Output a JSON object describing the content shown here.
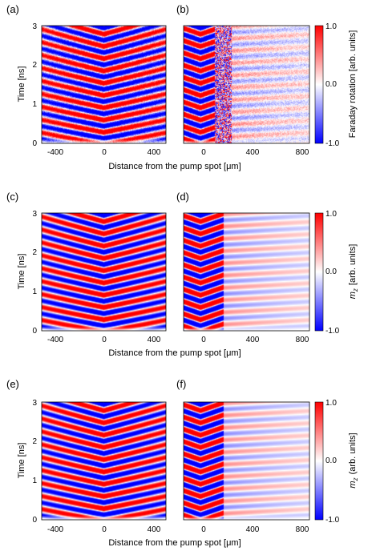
{
  "figure": {
    "panels": [
      {
        "id": "a",
        "label": "(a)",
        "type": "line_profile_heatmap",
        "kind": "sym",
        "noisy": true
      },
      {
        "id": "b",
        "label": "(b)",
        "type": "line_profile_heatmap",
        "kind": "asym",
        "noisy": true
      },
      {
        "id": "c",
        "label": "(c)",
        "type": "line_profile_heatmap",
        "kind": "sym",
        "noisy": false
      },
      {
        "id": "d",
        "label": "(d)",
        "type": "line_profile_heatmap",
        "kind": "asym",
        "noisy": false
      },
      {
        "id": "e",
        "label": "(e)",
        "type": "line_profile_heatmap",
        "kind": "sym",
        "noisy": false
      },
      {
        "id": "f",
        "label": "(f)",
        "type": "line_profile_heatmap",
        "kind": "asym",
        "noisy": false
      }
    ],
    "rows": [
      {
        "ylabel": "Time [ns]",
        "xlabel_main": "Distance from the pump spot [",
        "xlabel_unit": "m]",
        "colorbar_label": "Faraday rotation  [arb. units]",
        "colorbar_ticks": [
          "1.0",
          "0.0",
          "-1.0"
        ]
      },
      {
        "ylabel": "Time [ns]",
        "xlabel_main": "Distance from the pump spot [",
        "xlabel_unit": "m]",
        "colorbar_label": "[arb. units]",
        "colorbar_symbol": "m",
        "colorbar_subscript": "z",
        "colorbar_ticks": [
          "1.0",
          "0.0",
          "-1.0"
        ]
      },
      {
        "ylabel": "Time [ns]",
        "xlabel_main": "Distance from the pump spot [",
        "xlabel_unit": "m]",
        "colorbar_label": "(arb. units]",
        "colorbar_symbol": "m",
        "colorbar_subscript": "z",
        "colorbar_ticks": [
          "1.0",
          "0.0",
          "-1.0"
        ]
      }
    ],
    "mu_symbol": "μ",
    "left_xticks": [
      "-400",
      "0",
      "400"
    ],
    "right_xticks": [
      "0",
      "400",
      "800"
    ],
    "yticks": [
      "0",
      "1",
      "2",
      "3"
    ],
    "colormap": {
      "negative": "#0000ff",
      "zero": "#ffffff",
      "positive": "#ff0000"
    }
  },
  "chart_data": [
    {
      "type": "heatmap",
      "panel": "(a)",
      "xlabel": "Distance from the pump spot [μm]",
      "ylabel": "Time [ns]",
      "xlim": [
        -500,
        500
      ],
      "ylim": [
        0,
        3
      ],
      "x_ticks": [
        -400,
        0,
        400
      ],
      "y_ticks": [
        0,
        1,
        2,
        3
      ],
      "value_range": [
        -1.0,
        1.0
      ],
      "colorbar_label": "Faraday rotation [arb. units]"
    },
    {
      "type": "heatmap",
      "panel": "(b)",
      "xlabel": "Distance from the pump spot [μm]",
      "ylabel": "Time [ns]",
      "xlim": [
        -140,
        900
      ],
      "ylim": [
        0,
        3
      ],
      "x_ticks": [
        0,
        400,
        800
      ],
      "y_ticks": [
        0,
        1,
        2,
        3
      ],
      "value_range": [
        -1.0,
        1.0
      ],
      "colorbar_label": "Faraday rotation [arb. units]"
    },
    {
      "type": "heatmap",
      "panel": "(c)",
      "xlabel": "Distance from the pump spot [μm]",
      "ylabel": "Time [ns]",
      "xlim": [
        -500,
        500
      ],
      "ylim": [
        0,
        3
      ],
      "x_ticks": [
        -400,
        0,
        400
      ],
      "y_ticks": [
        0,
        1,
        2,
        3
      ],
      "value_range": [
        -1.0,
        1.0
      ],
      "colorbar_label": "m_z [arb. units]"
    },
    {
      "type": "heatmap",
      "panel": "(d)",
      "xlabel": "Distance from the pump spot [μm]",
      "ylabel": "Time [ns]",
      "xlim": [
        -140,
        900
      ],
      "ylim": [
        0,
        3
      ],
      "x_ticks": [
        0,
        400,
        800
      ],
      "y_ticks": [
        0,
        1,
        2,
        3
      ],
      "value_range": [
        -1.0,
        1.0
      ],
      "colorbar_label": "m_z [arb. units]"
    },
    {
      "type": "heatmap",
      "panel": "(e)",
      "xlabel": "Distance from the pump spot [μm]",
      "ylabel": "Time [ns]",
      "xlim": [
        -500,
        500
      ],
      "ylim": [
        0,
        3
      ],
      "x_ticks": [
        -400,
        0,
        400
      ],
      "y_ticks": [
        0,
        1,
        2,
        3
      ],
      "value_range": [
        -1.0,
        1.0
      ],
      "colorbar_label": "m_z (arb. units]"
    },
    {
      "type": "heatmap",
      "panel": "(f)",
      "xlabel": "Distance from the pump spot [μm]",
      "ylabel": "Time [ns]",
      "xlim": [
        -140,
        900
      ],
      "ylim": [
        0,
        3
      ],
      "x_ticks": [
        0,
        400,
        800
      ],
      "y_ticks": [
        0,
        1,
        2,
        3
      ],
      "value_range": [
        -1.0,
        1.0
      ],
      "colorbar_label": "m_z (arb. units]"
    }
  ]
}
